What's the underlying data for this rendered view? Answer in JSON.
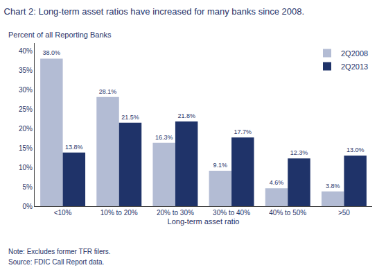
{
  "chart_data": {
    "type": "bar",
    "title": "Chart 2: Long-term asset ratios have increased for many banks since 2008.",
    "ylabel": "Percent of all Reporting Banks",
    "xlabel": "Long-term asset ratio",
    "categories": [
      "<10%",
      "10% to 20%",
      "20% to 30%",
      "30% to 40%",
      "40% to 50%",
      ">50"
    ],
    "series": [
      {
        "name": "2Q2008",
        "color": "#b3bcd4",
        "values": [
          38.0,
          28.1,
          16.3,
          9.1,
          4.6,
          3.8
        ],
        "value_labels": [
          "38.0%",
          "28.1%",
          "16.3%",
          "9.1%",
          "4.6%",
          "3.8%"
        ]
      },
      {
        "name": "2Q2013",
        "color": "#1f3369",
        "values": [
          13.8,
          21.5,
          21.8,
          17.7,
          12.3,
          13.0
        ],
        "value_labels": [
          "13.8%",
          "21.5%",
          "21.8%",
          "17.7%",
          "12.3%",
          "13.0%"
        ]
      }
    ],
    "ylim": [
      0,
      42
    ],
    "yticks": [
      {
        "value": 0,
        "label": "0%"
      },
      {
        "value": 5,
        "label": "5%"
      },
      {
        "value": 10,
        "label": "10%"
      },
      {
        "value": 15,
        "label": "15%"
      },
      {
        "value": 20,
        "label": "20%"
      },
      {
        "value": 25,
        "label": "25%"
      },
      {
        "value": 30,
        "label": "30%"
      },
      {
        "value": 35,
        "label": "35%"
      },
      {
        "value": 40,
        "label": "40%"
      }
    ],
    "annotations": [
      "Note: Excludes former TFR filers.",
      "Source: FDIC Call Report data."
    ],
    "data_labels": true,
    "legend": "upper right",
    "grid": false,
    "color": "#1f3369"
  }
}
